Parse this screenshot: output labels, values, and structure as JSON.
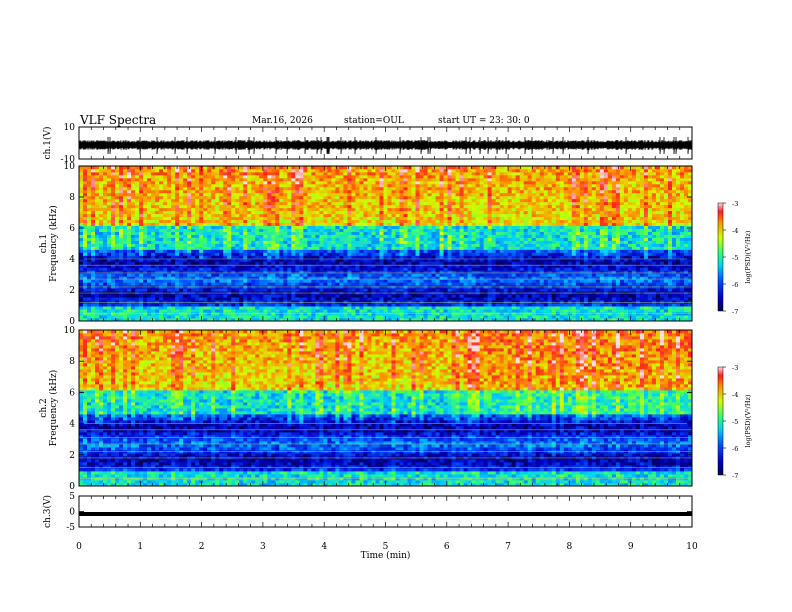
{
  "header": {
    "title": "VLF Spectra",
    "date": "Mar.16, 2026",
    "station": "station=OUL",
    "start": "start  UT =   23: 30: 0"
  },
  "chart_data": [
    {
      "type": "line",
      "name": "waveform-ch1",
      "ylabel": "ch.1(V)",
      "ylim": [
        -10,
        10
      ],
      "yticks": [
        "10",
        "-10"
      ],
      "xlim": [
        0,
        10
      ],
      "description_values": {
        "baseline": -0.5,
        "typical_amplitude": 2,
        "spike_amplitude": 4
      }
    },
    {
      "type": "heatmap",
      "name": "spectrogram-ch1",
      "ylabel": "ch.1\nFrequency (kHz)",
      "ylim": [
        0,
        10
      ],
      "yticks": [
        0,
        2,
        4,
        6,
        8,
        10
      ],
      "xlim": [
        0,
        10
      ],
      "colorbar": {
        "label": "log(PSD)(V²/Hz)",
        "range": [
          -7,
          -3
        ],
        "ticks": [
          "-3",
          "-4",
          "-5",
          "-6",
          "-7"
        ]
      }
    },
    {
      "type": "heatmap",
      "name": "spectrogram-ch2",
      "ylabel": "ch.2\nFrequency (kHz)",
      "ylim": [
        0,
        10
      ],
      "yticks": [
        0,
        2,
        4,
        6,
        8,
        10
      ],
      "xlim": [
        0,
        10
      ],
      "colorbar": {
        "label": "log(PSD)(V²/Hz)",
        "range": [
          -7,
          -3
        ],
        "ticks": [
          "-3",
          "-4",
          "-5",
          "-6",
          "-7"
        ]
      }
    },
    {
      "type": "line",
      "name": "waveform-ch3",
      "ylabel": "ch.3(V)",
      "ylim": [
        -5,
        5
      ],
      "yticks": [
        "5",
        "0",
        "-5"
      ],
      "xlim": [
        0,
        10
      ],
      "description_values": {
        "constant": -0.8
      }
    }
  ],
  "xaxis": {
    "label": "Time (min)",
    "ticks": [
      "0",
      "1",
      "2",
      "3",
      "4",
      "5",
      "6",
      "7",
      "8",
      "9",
      "10"
    ]
  }
}
